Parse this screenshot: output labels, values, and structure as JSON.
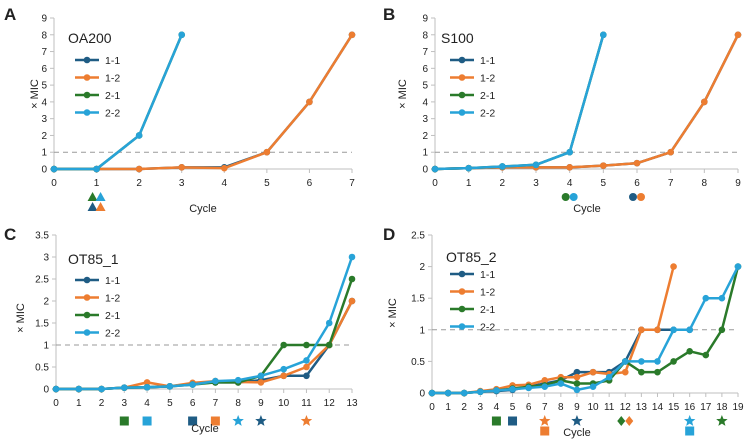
{
  "colors": {
    "1-1": "#1f5c84",
    "1-2": "#ed7d31",
    "2-1": "#2a7a2a",
    "2-2": "#27a3d8",
    "axis": "#bfbfbf",
    "threshold": "#9a9a9a"
  },
  "chart_data": [
    {
      "panel": "A",
      "title": "OA200",
      "type": "line",
      "xlabel": "Cycle",
      "ylabel": "× MIC",
      "x": [
        0,
        1,
        2,
        3,
        4,
        5,
        6,
        7
      ],
      "xticks": [
        "0",
        "1",
        "2",
        "3",
        "4",
        "5",
        "6",
        "7"
      ],
      "ylim": [
        0,
        9
      ],
      "yticks": [
        "0",
        "1",
        "2",
        "3",
        "4",
        "5",
        "6",
        "7",
        "8",
        "9"
      ],
      "threshold": 1,
      "series": [
        {
          "name": "1-1",
          "values": [
            0,
            0,
            0,
            0.1,
            0.1,
            1,
            4,
            8
          ]
        },
        {
          "name": "1-2",
          "values": [
            0,
            0,
            0,
            0.1,
            0.05,
            1,
            4,
            8
          ]
        },
        {
          "name": "2-1",
          "values": [
            0,
            0,
            2,
            8,
            null,
            null,
            null,
            null
          ]
        },
        {
          "name": "2-2",
          "values": [
            0,
            0,
            2,
            8,
            null,
            null,
            null,
            null
          ]
        }
      ],
      "markers": [
        {
          "series": "2-1",
          "shape": "triangle",
          "x": 1
        },
        {
          "series": "2-2",
          "shape": "triangle",
          "x": 1
        },
        {
          "series": "1-1",
          "shape": "triangle",
          "x": 1
        },
        {
          "series": "1-2",
          "shape": "triangle",
          "x": 1
        }
      ]
    },
    {
      "panel": "B",
      "title": "S100",
      "type": "line",
      "xlabel": "Cycle",
      "ylabel": "× MIC",
      "x": [
        0,
        1,
        2,
        3,
        4,
        5,
        6,
        7,
        8,
        9
      ],
      "xticks": [
        "0",
        "1",
        "2",
        "3",
        "4",
        "5",
        "6",
        "7",
        "8",
        "9"
      ],
      "ylim": [
        0,
        9
      ],
      "yticks": [
        "0",
        "1",
        "2",
        "3",
        "4",
        "5",
        "6",
        "7",
        "8",
        "9"
      ],
      "threshold": 1,
      "series": [
        {
          "name": "1-1",
          "values": [
            0,
            0.05,
            0.1,
            0.1,
            0.1,
            0.2,
            0.35,
            1,
            4,
            8
          ]
        },
        {
          "name": "1-2",
          "values": [
            0,
            0.05,
            0.1,
            0.1,
            0.1,
            0.2,
            0.35,
            1,
            4,
            8
          ]
        },
        {
          "name": "2-1",
          "values": [
            0,
            0.05,
            0.15,
            0.25,
            1,
            8,
            null,
            null,
            null,
            null
          ]
        },
        {
          "name": "2-2",
          "values": [
            0,
            0.05,
            0.15,
            0.25,
            1,
            8,
            null,
            null,
            null,
            null
          ]
        }
      ],
      "markers": [
        {
          "series": "2-1",
          "shape": "circle",
          "x": 4
        },
        {
          "series": "2-2",
          "shape": "circle",
          "x": 4
        },
        {
          "series": "1-1",
          "shape": "circle",
          "x": 6
        },
        {
          "series": "1-2",
          "shape": "circle",
          "x": 6
        }
      ]
    },
    {
      "panel": "C",
      "title": "OT85_1",
      "type": "line",
      "xlabel": "Cycle",
      "ylabel": "× MIC",
      "x": [
        0,
        1,
        2,
        3,
        4,
        5,
        6,
        7,
        8,
        9,
        10,
        11,
        12,
        13
      ],
      "xticks": [
        "0",
        "1",
        "2",
        "3",
        "4",
        "5",
        "6",
        "7",
        "8",
        "9",
        "10",
        "11",
        "12",
        "13"
      ],
      "ylim": [
        0,
        3.5
      ],
      "yticks": [
        "0",
        "0.5",
        "1",
        "1.5",
        "2",
        "2.5",
        "3",
        "3.5"
      ],
      "threshold": 1,
      "series": [
        {
          "name": "1-1",
          "values": [
            0,
            0,
            0,
            0.03,
            0.04,
            0.06,
            0.12,
            0.15,
            0.15,
            0.2,
            0.3,
            0.3,
            1,
            2
          ]
        },
        {
          "name": "1-2",
          "values": [
            0,
            0,
            0,
            0.03,
            0.15,
            0.06,
            0.14,
            0.18,
            0.16,
            0.15,
            0.3,
            0.5,
            1,
            2
          ]
        },
        {
          "name": "2-1",
          "values": [
            0,
            0,
            0,
            0.03,
            0.04,
            0.06,
            0.1,
            0.15,
            0.15,
            0.3,
            1,
            1,
            1,
            2.5
          ]
        },
        {
          "name": "2-2",
          "values": [
            0,
            0,
            0,
            0.03,
            0.04,
            0.06,
            0.1,
            0.18,
            0.2,
            0.3,
            0.45,
            0.65,
            1.5,
            3
          ]
        }
      ],
      "markers": [
        {
          "series": "2-1",
          "shape": "square",
          "x": 3
        },
        {
          "series": "2-2",
          "shape": "square",
          "x": 4
        },
        {
          "series": "1-1",
          "shape": "square",
          "x": 6
        },
        {
          "series": "1-2",
          "shape": "square",
          "x": 7
        },
        {
          "series": "2-2",
          "shape": "star",
          "x": 8
        },
        {
          "series": "1-1",
          "shape": "star",
          "x": 9
        },
        {
          "series": "1-2",
          "shape": "star",
          "x": 11
        }
      ]
    },
    {
      "panel": "D",
      "title": "OT85_2",
      "type": "line",
      "xlabel": "Cycle",
      "ylabel": "× MIC",
      "x": [
        0,
        1,
        2,
        3,
        4,
        5,
        6,
        7,
        8,
        9,
        10,
        11,
        12,
        13,
        14,
        15,
        16,
        17,
        18,
        19
      ],
      "xticks": [
        "0",
        "1",
        "2",
        "3",
        "4",
        "5",
        "6",
        "7",
        "8",
        "9",
        "10",
        "11",
        "12",
        "13",
        "14",
        "15",
        "16",
        "17",
        "18",
        "19"
      ],
      "ylim": [
        0,
        2.5
      ],
      "yticks": [
        "0",
        "0.5",
        "1",
        "1.5",
        "2",
        "2.5"
      ],
      "threshold": 1,
      "series": [
        {
          "name": "1-1",
          "values": [
            0,
            0,
            0,
            0.02,
            0.03,
            0.05,
            0.1,
            0.15,
            0.2,
            0.33,
            0.33,
            0.33,
            0.5,
            1,
            1,
            1,
            1,
            null,
            null,
            null
          ]
        },
        {
          "name": "1-2",
          "values": [
            0,
            0,
            0,
            0.03,
            0.06,
            0.12,
            0.13,
            0.2,
            0.25,
            0.25,
            0.33,
            0.3,
            0.33,
            1,
            1,
            2,
            null,
            null,
            null,
            null
          ]
        },
        {
          "name": "2-1",
          "values": [
            0,
            0,
            0,
            0.02,
            0.04,
            0.07,
            0.1,
            0.12,
            0.2,
            0.15,
            0.15,
            0.2,
            0.5,
            0.33,
            0.33,
            0.5,
            0.66,
            0.6,
            1,
            2
          ]
        },
        {
          "name": "2-2",
          "values": [
            0,
            0,
            0,
            0.02,
            0.04,
            0.06,
            0.08,
            0.1,
            0.15,
            0.05,
            0.1,
            0.25,
            0.5,
            0.5,
            0.5,
            1,
            1,
            1.5,
            1.5,
            2
          ]
        }
      ],
      "markers": [
        {
          "series": "2-1",
          "shape": "square",
          "x": 4
        },
        {
          "series": "1-1",
          "shape": "square",
          "x": 5
        },
        {
          "series": "1-2",
          "shape": "star",
          "x": 7
        },
        {
          "series": "1-2",
          "shape": "square",
          "x": 7
        },
        {
          "series": "1-1",
          "shape": "star",
          "x": 9
        },
        {
          "series": "2-1",
          "shape": "diamond",
          "x": 12
        },
        {
          "series": "1-2",
          "shape": "diamond",
          "x": 12
        },
        {
          "series": "2-2",
          "shape": "star",
          "x": 16
        },
        {
          "series": "2-2",
          "shape": "square",
          "x": 16
        },
        {
          "series": "2-1",
          "shape": "star",
          "x": 18
        }
      ]
    }
  ]
}
